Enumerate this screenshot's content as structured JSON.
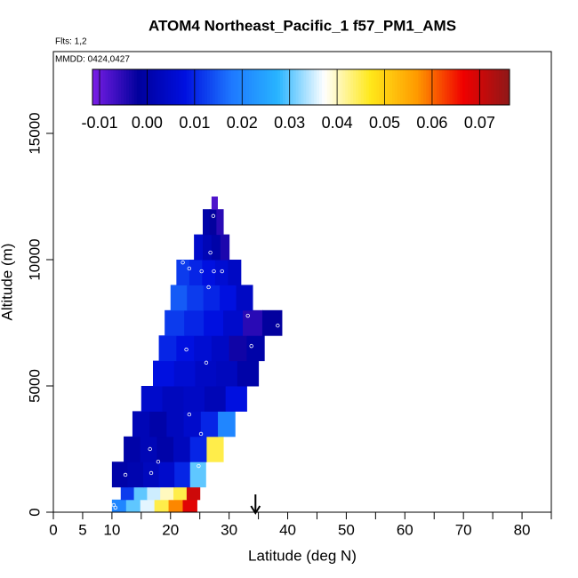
{
  "chart_data": {
    "type": "curtain",
    "title": "ATOM4 Northeast_Pacific_1 f57_PM1_AMS",
    "flights": "Flts: 1,2",
    "dates": "MMDD: 0424,0427",
    "x_label": "Latitude (deg N)",
    "y_label": "Altitude (m)",
    "xlim": [
      0,
      85
    ],
    "xticks": [
      0,
      5,
      10,
      20,
      30,
      40,
      50,
      60,
      70,
      80
    ],
    "xminorticks": [
      15,
      25,
      35,
      45,
      55,
      65,
      75,
      85
    ],
    "ylim": [
      0,
      18240
    ],
    "yticks": [
      0,
      5000,
      10000,
      15000
    ],
    "colorlim": [
      -0.0115,
      0.0763
    ],
    "colorticks": [
      -0.01,
      {
        "value": 0,
        "label": "0.00"
      },
      0.01,
      0.02,
      0.03,
      0.04,
      0.05,
      0.06,
      0.07
    ],
    "colormap": [
      "#7a1ee6",
      "#00009c",
      "#0010e0",
      "#1e78ff",
      "#28b4ff",
      "#ffffff",
      "#ffe81a",
      "#ff9a00",
      "#f00000",
      "#8e1818"
    ],
    "rows": [
      {
        "alt": [
          0,
          500
        ],
        "lat": [
          10,
          24.5
        ],
        "values": [
          0.02,
          0.03,
          0.036,
          0.045,
          0.058,
          0.068
        ]
      },
      {
        "alt": [
          500,
          1000
        ],
        "lat": [
          11.5,
          25
        ],
        "values": [
          0.012,
          0.03,
          0.035,
          0.04,
          0.045,
          0.07
        ]
      },
      {
        "alt": [
          1000,
          2000
        ],
        "lat": [
          10,
          26
        ],
        "values": [
          0.0,
          0.001,
          0.003,
          0.005,
          0.01,
          0.03
        ]
      },
      {
        "alt": [
          2000,
          3000
        ],
        "lat": [
          12,
          29
        ],
        "values": [
          0.0,
          0.002,
          0.0,
          0.003,
          0.01,
          0.045
        ]
      },
      {
        "alt": [
          3000,
          4000
        ],
        "lat": [
          13.5,
          31
        ],
        "values": [
          0.002,
          0.0,
          0.003,
          0.005,
          0.01,
          0.02
        ]
      },
      {
        "alt": [
          4000,
          5000
        ],
        "lat": [
          15,
          33
        ],
        "values": [
          0.005,
          0.003,
          0.004,
          0.002,
          0.008
        ]
      },
      {
        "alt": [
          5000,
          6000
        ],
        "lat": [
          17,
          35
        ],
        "values": [
          0.008,
          0.006,
          0.004,
          0.003,
          0.0
        ]
      },
      {
        "alt": [
          6000,
          7000
        ],
        "lat": [
          18,
          36
        ],
        "values": [
          0.01,
          0.008,
          0.006,
          0.004,
          -0.003,
          0.0
        ]
      },
      {
        "alt": [
          7000,
          8000
        ],
        "lat": [
          19,
          39
        ],
        "values": [
          0.012,
          0.01,
          0.008,
          0.005,
          -0.005,
          -0.002
        ]
      },
      {
        "alt": [
          8000,
          9000
        ],
        "lat": [
          20,
          34
        ],
        "values": [
          0.015,
          0.012,
          0.01,
          0.008,
          0.004
        ]
      },
      {
        "alt": [
          9000,
          10000
        ],
        "lat": [
          21,
          32
        ],
        "values": [
          0.012,
          0.01,
          0.008,
          0.006,
          0.004
        ]
      },
      {
        "alt": [
          10000,
          11000
        ],
        "lat": [
          24,
          30
        ],
        "values": [
          0.005,
          0.002,
          0.0,
          -0.004
        ]
      },
      {
        "alt": [
          11000,
          12000
        ],
        "lat": [
          25.5,
          29
        ],
        "values": [
          0.0,
          -0.002,
          -0.005
        ]
      },
      {
        "alt": [
          12000,
          12500
        ],
        "lat": [
          27,
          28
        ],
        "values": [
          -0.008
        ]
      }
    ],
    "points": {
      "x": [
        10.3,
        10.6,
        10.5,
        12.3,
        16.5,
        17.9,
        16.7,
        24.8,
        25.2,
        23.2,
        26.1,
        22.7,
        33.8,
        33.2,
        38.3,
        22.1,
        23.2,
        25.3,
        27.4,
        28.8,
        26.5,
        26.8,
        27.3
      ],
      "y": [
        282,
        180,
        740,
        1480,
        2500,
        2000,
        1550,
        1830,
        3100,
        3870,
        5920,
        6440,
        6580,
        7780,
        7390,
        9890,
        9650,
        9540,
        9540,
        9540,
        8910,
        10280,
        11730
      ]
    },
    "arrow_lat": 34.5
  }
}
